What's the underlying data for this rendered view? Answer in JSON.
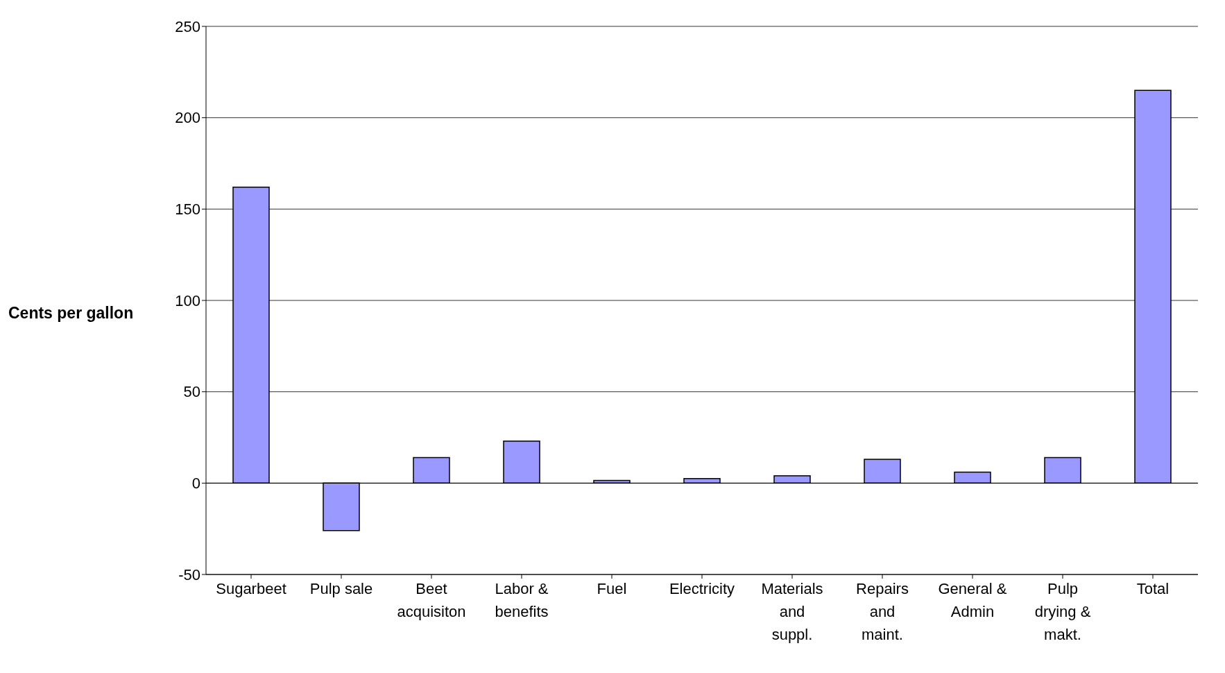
{
  "chart_data": {
    "type": "bar",
    "ylabel": "Cents per gallon",
    "categories": [
      "Sugarbeet",
      "Pulp sale",
      "Beet acquisiton",
      "Labor & benefits",
      "Fuel",
      "Electricity",
      "Materials and suppl.",
      "Repairs and maint.",
      "General & Admin",
      "Pulp drying & makt.",
      "Total"
    ],
    "values": [
      162,
      -26,
      14,
      23,
      1.5,
      2.5,
      4,
      13,
      6,
      14,
      215
    ],
    "color": "#9999ff",
    "ylim": [
      -50,
      250
    ],
    "yticks": [
      -50,
      0,
      50,
      100,
      150,
      200,
      250
    ],
    "grid": "y"
  }
}
